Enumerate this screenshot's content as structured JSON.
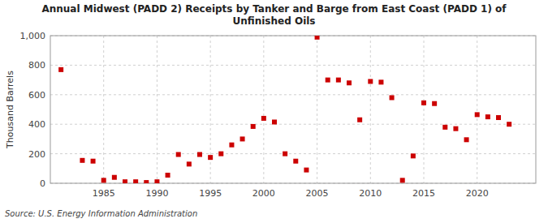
{
  "chart_data": {
    "type": "scatter",
    "title": "Annual Midwest (PADD 2) Receipts by Tanker and Barge from East Coast (PADD 1) of\nUnfinished Oils",
    "y_label": "Thousand Barrels",
    "annotations": [
      "Source: U.S. Energy Information Administration"
    ],
    "color": "#cc0000",
    "marker": "square",
    "grid": true,
    "x": [
      1981,
      1983,
      1984,
      1985,
      1986,
      1987,
      1988,
      1989,
      1990,
      1991,
      1992,
      1993,
      1994,
      1995,
      1996,
      1997,
      1998,
      1999,
      2000,
      2001,
      2002,
      2003,
      2004,
      2005,
      2006,
      2007,
      2008,
      2009,
      2010,
      2011,
      2012,
      2013,
      2014,
      2015,
      2016,
      2017,
      2018,
      2019,
      2020,
      2021,
      2022,
      2023
    ],
    "values": [
      770,
      155,
      150,
      20,
      40,
      10,
      10,
      5,
      10,
      55,
      195,
      130,
      195,
      175,
      200,
      260,
      300,
      385,
      440,
      415,
      200,
      150,
      90,
      990,
      700,
      700,
      680,
      430,
      690,
      685,
      580,
      20,
      185,
      545,
      540,
      380,
      370,
      295,
      465,
      450,
      445,
      400
    ],
    "xlim": [
      1980,
      2025.5
    ],
    "ylim": [
      0,
      1000
    ],
    "xticks": [
      1985,
      1990,
      1995,
      2000,
      2005,
      2010,
      2015,
      2020
    ],
    "yticks": [
      0,
      200,
      400,
      600,
      800,
      {
        "value": 1000,
        "label": "1,000"
      }
    ]
  }
}
